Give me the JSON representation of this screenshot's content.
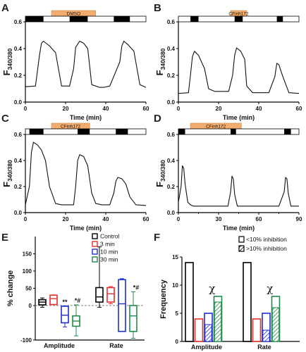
{
  "chart_data": [
    {
      "panel": "A",
      "type": "line",
      "ylabel_main": "F",
      "ylabel_sub": "340/380",
      "xlabel": "Time (min)",
      "xlim": [
        0,
        60
      ],
      "xticks": [
        "0",
        "20",
        "40",
        "60"
      ],
      "ylim": [
        0,
        0.6
      ],
      "yticks": [
        "0.0",
        "0.2",
        "0.4",
        "0.6"
      ],
      "drug_label": "DMSO",
      "drug_range": [
        13,
        35
      ],
      "stim_bars": [
        [
          0,
          9
        ],
        [
          22,
          31
        ],
        [
          44,
          52
        ]
      ],
      "series": [
        {
          "x": [
            0,
            5,
            7,
            8,
            9,
            12,
            15,
            18,
            22,
            24,
            25,
            27,
            29,
            31,
            33,
            37,
            39,
            42,
            47,
            48,
            49,
            51,
            54,
            57,
            60
          ],
          "y": [
            0.115,
            0.12,
            0.35,
            0.44,
            0.455,
            0.42,
            0.37,
            0.12,
            0.12,
            0.25,
            0.41,
            0.455,
            0.44,
            0.4,
            0.13,
            0.11,
            0.11,
            0.12,
            0.3,
            0.42,
            0.455,
            0.43,
            0.38,
            0.13,
            0.11
          ]
        }
      ]
    },
    {
      "panel": "B",
      "type": "line",
      "ylabel_main": "F",
      "ylabel_sub": "340/380",
      "xlabel": "Time (min)",
      "xlim": [
        0,
        60
      ],
      "xticks": [
        "0",
        "20",
        "40",
        "60"
      ],
      "ylim": [
        0,
        0.6
      ],
      "yticks": [
        "0.0",
        "0.2",
        "0.4",
        "0.6"
      ],
      "drug_label": "CFinh172",
      "drug_range": [
        26,
        34
      ],
      "stim_bars": [
        [
          6,
          10
        ],
        [
          28,
          32
        ],
        [
          49,
          52
        ]
      ],
      "series": [
        {
          "x": [
            0,
            5,
            6,
            7,
            8,
            10,
            13,
            15,
            18,
            25,
            27,
            28,
            29,
            31,
            33,
            34,
            37,
            45,
            48,
            49,
            50,
            52,
            55,
            60
          ],
          "y": [
            0.065,
            0.07,
            0.2,
            0.34,
            0.38,
            0.35,
            0.25,
            0.1,
            0.08,
            0.08,
            0.2,
            0.35,
            0.405,
            0.38,
            0.32,
            0.12,
            0.07,
            0.07,
            0.19,
            0.29,
            0.28,
            0.19,
            0.07,
            0.065
          ]
        }
      ]
    },
    {
      "panel": "C",
      "type": "line",
      "ylabel_main": "F",
      "ylabel_sub": "340/380",
      "xlabel": "Time (min)",
      "xlim": [
        0,
        60
      ],
      "xticks": [
        "0",
        "20",
        "40",
        "60"
      ],
      "ylim": [
        0,
        0.6
      ],
      "yticks": [
        "0.0",
        "0.2",
        "0.4",
        "0.6"
      ],
      "drug_label": "CFinh172",
      "drug_range": [
        13,
        32
      ],
      "stim_bars": [
        [
          2,
          9
        ],
        [
          26,
          32
        ],
        [
          45,
          51
        ]
      ],
      "series": [
        {
          "x": [
            0,
            2,
            3,
            4,
            6,
            8,
            10,
            12,
            15,
            18,
            24,
            25,
            26,
            27,
            29,
            31,
            33,
            35,
            38,
            42,
            44,
            45,
            46,
            48,
            50,
            52,
            55,
            60
          ],
          "y": [
            0.06,
            0.2,
            0.46,
            0.54,
            0.52,
            0.48,
            0.4,
            0.2,
            0.07,
            0.06,
            0.06,
            0.2,
            0.4,
            0.445,
            0.43,
            0.36,
            0.15,
            0.07,
            0.06,
            0.06,
            0.15,
            0.24,
            0.27,
            0.26,
            0.22,
            0.12,
            0.06,
            0.055
          ]
        }
      ]
    },
    {
      "panel": "D",
      "type": "line",
      "ylabel_main": "F",
      "ylabel_sub": "340/380",
      "xlabel": "Time (min)",
      "xlim": [
        0,
        90
      ],
      "xticks": [
        "0",
        "30",
        "60",
        "90"
      ],
      "ylim": [
        0,
        0.6
      ],
      "yticks": [
        "0.0",
        "0.2",
        "0.4",
        "0.6"
      ],
      "drug_label": "CFinh172",
      "drug_range": [
        9,
        47
      ],
      "stim_bars": [
        [
          0,
          5
        ],
        [
          39,
          43
        ],
        [
          79,
          84
        ]
      ],
      "series": [
        {
          "x": [
            0,
            2,
            3,
            4,
            5,
            7,
            9,
            11,
            18,
            30,
            37,
            39,
            40,
            41,
            42,
            44,
            46,
            60,
            75,
            79,
            80,
            81,
            82,
            84,
            86,
            90
          ],
          "y": [
            0.08,
            0.2,
            0.36,
            0.34,
            0.22,
            0.08,
            0.06,
            0.05,
            0.05,
            0.05,
            0.05,
            0.16,
            0.28,
            0.26,
            0.14,
            0.05,
            0.05,
            0.05,
            0.05,
            0.16,
            0.27,
            0.26,
            0.15,
            0.05,
            0.05,
            0.05
          ]
        }
      ]
    },
    {
      "panel": "E",
      "type": "box",
      "ylabel": "% change",
      "ylim": [
        -100,
        200
      ],
      "yticks": [
        "-100",
        "0",
        "50",
        "100",
        "150"
      ],
      "groups": [
        "Amplitude",
        "Rate"
      ],
      "legend": [
        "Control",
        "3 min",
        "10 min",
        "30 min"
      ],
      "colors": [
        "#000000",
        "#e8302a",
        "#1f2fd0",
        "#1f8a4c"
      ],
      "boxes": [
        {
          "group": "Amplitude",
          "series": "Control",
          "min": -5,
          "q1": 2,
          "median": 10,
          "q3": 17,
          "max": 22
        },
        {
          "group": "Amplitude",
          "series": "3 min",
          "min": 3,
          "q1": 3,
          "median": 20,
          "q3": 30,
          "max": 31
        },
        {
          "group": "Amplitude",
          "series": "10 min",
          "min": -62,
          "q1": -50,
          "median": -28,
          "q3": -2,
          "max": -1
        },
        {
          "group": "Amplitude",
          "series": "30 min",
          "min": -88,
          "q1": -60,
          "median": -45,
          "q3": -30,
          "max": 2
        },
        {
          "group": "Rate",
          "series": "Control",
          "min": -5,
          "q1": 10,
          "median": 25,
          "q3": 52,
          "max": 170
        },
        {
          "group": "Rate",
          "series": "3 min",
          "min": 5,
          "q1": 10,
          "median": 34,
          "q3": 52,
          "max": 55
        },
        {
          "group": "Rate",
          "series": "10 min",
          "min": -75,
          "q1": -75,
          "median": 5,
          "q3": 75,
          "max": 78
        },
        {
          "group": "Rate",
          "series": "30 min",
          "min": -95,
          "q1": -75,
          "median": -30,
          "q3": 0,
          "max": 40
        }
      ],
      "annotations": [
        {
          "near": "Amplitude / 10 min",
          "text": "**"
        },
        {
          "near": "Amplitude / 30 min",
          "text": "*#"
        },
        {
          "near": "Rate / 30 min",
          "text": "*#"
        }
      ]
    },
    {
      "panel": "F",
      "type": "bar",
      "ylabel": "Frequency",
      "ylim": [
        0,
        15
      ],
      "yticks": [
        "0",
        "5",
        "10",
        "15"
      ],
      "groups": [
        "Amplitude",
        "Rate"
      ],
      "legend": [
        "<10% inhibition",
        ">10% inhibition"
      ],
      "annotation": "χ",
      "series": [
        {
          "name": "<10% inhibition",
          "values": [
            [
              14,
              4,
              5,
              8
            ],
            [
              14,
              4,
              5,
              8
            ]
          ]
        },
        {
          "name": ">10% inhibition",
          "values": [
            [
              0,
              0,
              3,
              7
            ],
            [
              0,
              0,
              2,
              6
            ]
          ]
        }
      ]
    }
  ]
}
